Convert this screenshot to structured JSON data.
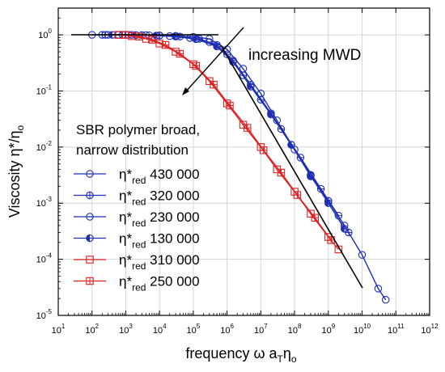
{
  "chart_data": {
    "type": "scatter",
    "title": "",
    "xlabel": "frequency ω a",
    "xlabel_sub": "T",
    "xlabel_tail": "η",
    "xlabel_sub2": "o",
    "ylabel": "Viscosity η*/η",
    "ylabel_sub": "o",
    "x_scale": "log",
    "y_scale": "log",
    "xlim": [
      10,
      1000000000000
    ],
    "ylim": [
      1e-05,
      3
    ],
    "grid": true,
    "x_tick_mantissa": "10",
    "x_tick_exponents": [
      "1",
      "2",
      "3",
      "4",
      "5",
      "6",
      "7",
      "8",
      "9",
      "10",
      "11",
      "12"
    ],
    "y_tick_mantissa": "10",
    "y_tick_exponents": [
      "0",
      "-1",
      "-2",
      "-3",
      "-4",
      "-5"
    ],
    "legend_title_line1": "SBR polymer broad,",
    "legend_title_line2": "narrow distribution",
    "legend_placement": "left",
    "series": [
      {
        "name_main": "η*",
        "name_sub": "red",
        "name_value": "430 000",
        "color": "#1f2fb4",
        "marker": "circle",
        "points": [
          [
            100,
            1.0
          ],
          [
            250,
            1.0
          ],
          [
            600,
            1.0
          ],
          [
            1500,
            1.0
          ],
          [
            4000,
            0.99
          ],
          [
            10000,
            0.98
          ],
          [
            30000,
            0.96
          ],
          [
            100000,
            0.92
          ],
          [
            300000,
            0.85
          ],
          [
            1000000,
            0.55
          ],
          [
            3000000,
            0.25
          ],
          [
            10000000,
            0.09
          ],
          [
            30000000,
            0.03
          ],
          [
            100000000,
            0.009
          ],
          [
            300000000,
            0.003
          ],
          [
            1000000000,
            0.0011
          ],
          [
            3000000000,
            0.0004
          ],
          [
            10000000000,
            0.00012
          ],
          [
            30000000000,
            3e-05
          ],
          [
            50000000000,
            1.9e-05
          ]
        ]
      },
      {
        "name_main": "η*",
        "name_sub": "red",
        "name_value": "320 000",
        "color": "#1f2fb4",
        "marker": "circle-plus",
        "points": [
          [
            200,
            1.0
          ],
          [
            800,
            1.0
          ],
          [
            3000,
            0.99
          ],
          [
            10000,
            0.97
          ],
          [
            40000,
            0.93
          ],
          [
            150000,
            0.85
          ],
          [
            500000,
            0.66
          ],
          [
            1500000,
            0.35
          ],
          [
            5000000,
            0.13
          ],
          [
            20000000,
            0.04
          ],
          [
            80000000,
            0.011
          ],
          [
            300000000,
            0.0032
          ],
          [
            1000000000,
            0.0011
          ],
          [
            4000000000,
            0.0003
          ]
        ]
      },
      {
        "name_main": "η*",
        "name_sub": "red",
        "name_value": "230 000",
        "color": "#1f2fb4",
        "marker": "circle-minus",
        "points": [
          [
            300,
            1.0
          ],
          [
            1200,
            1.0
          ],
          [
            5000,
            0.98
          ],
          [
            20000,
            0.95
          ],
          [
            80000,
            0.88
          ],
          [
            300000,
            0.74
          ],
          [
            1000000,
            0.45
          ],
          [
            3000000,
            0.19
          ],
          [
            10000000,
            0.07
          ],
          [
            40000000,
            0.021
          ],
          [
            150000000,
            0.0065
          ],
          [
            600000000,
            0.0018
          ],
          [
            2000000000,
            0.0006
          ]
        ]
      },
      {
        "name_main": "η*",
        "name_sub": "red",
        "name_value": "130 000",
        "color": "#1f2fb4",
        "marker": "circle-half",
        "points": [
          [
            400,
            1.0
          ],
          [
            2000,
            0.99
          ],
          [
            8000,
            0.97
          ],
          [
            30000,
            0.93
          ],
          [
            120000,
            0.84
          ],
          [
            500000,
            0.62
          ],
          [
            1500000,
            0.33
          ],
          [
            5000000,
            0.12
          ],
          [
            20000000,
            0.038
          ],
          [
            80000000,
            0.011
          ],
          [
            300000000,
            0.0031
          ],
          [
            1000000000,
            0.001
          ],
          [
            3000000000,
            0.00035
          ]
        ]
      },
      {
        "name_main": "η*",
        "name_sub": "red",
        "name_value": "310 000",
        "color": "#e02020",
        "marker": "square",
        "points": [
          [
            600,
            1.0
          ],
          [
            1500,
            0.95
          ],
          [
            4000,
            0.85
          ],
          [
            10000,
            0.7
          ],
          [
            30000,
            0.5
          ],
          [
            100000,
            0.3
          ],
          [
            300000,
            0.15
          ],
          [
            1000000,
            0.06
          ],
          [
            3000000,
            0.025
          ],
          [
            10000000,
            0.01
          ],
          [
            30000000,
            0.004
          ],
          [
            100000000,
            0.0016
          ],
          [
            300000000,
            0.00065
          ],
          [
            1000000000,
            0.00025
          ],
          [
            2000000000,
            0.00015
          ]
        ]
      },
      {
        "name_main": "η*",
        "name_sub": "red",
        "name_value": "250 000",
        "color": "#e02020",
        "marker": "square-plus",
        "points": [
          [
            1000,
            1.0
          ],
          [
            2500,
            0.93
          ],
          [
            6000,
            0.82
          ],
          [
            15000,
            0.66
          ],
          [
            40000,
            0.46
          ],
          [
            120000,
            0.28
          ],
          [
            400000,
            0.13
          ],
          [
            1200000,
            0.055
          ],
          [
            4000000,
            0.022
          ],
          [
            12000000,
            0.0088
          ],
          [
            40000000,
            0.0035
          ],
          [
            120000000,
            0.0014
          ],
          [
            400000000,
            0.00055
          ],
          [
            1200000000,
            0.00022
          ]
        ]
      }
    ],
    "annotation_text": "increasing MWD"
  }
}
